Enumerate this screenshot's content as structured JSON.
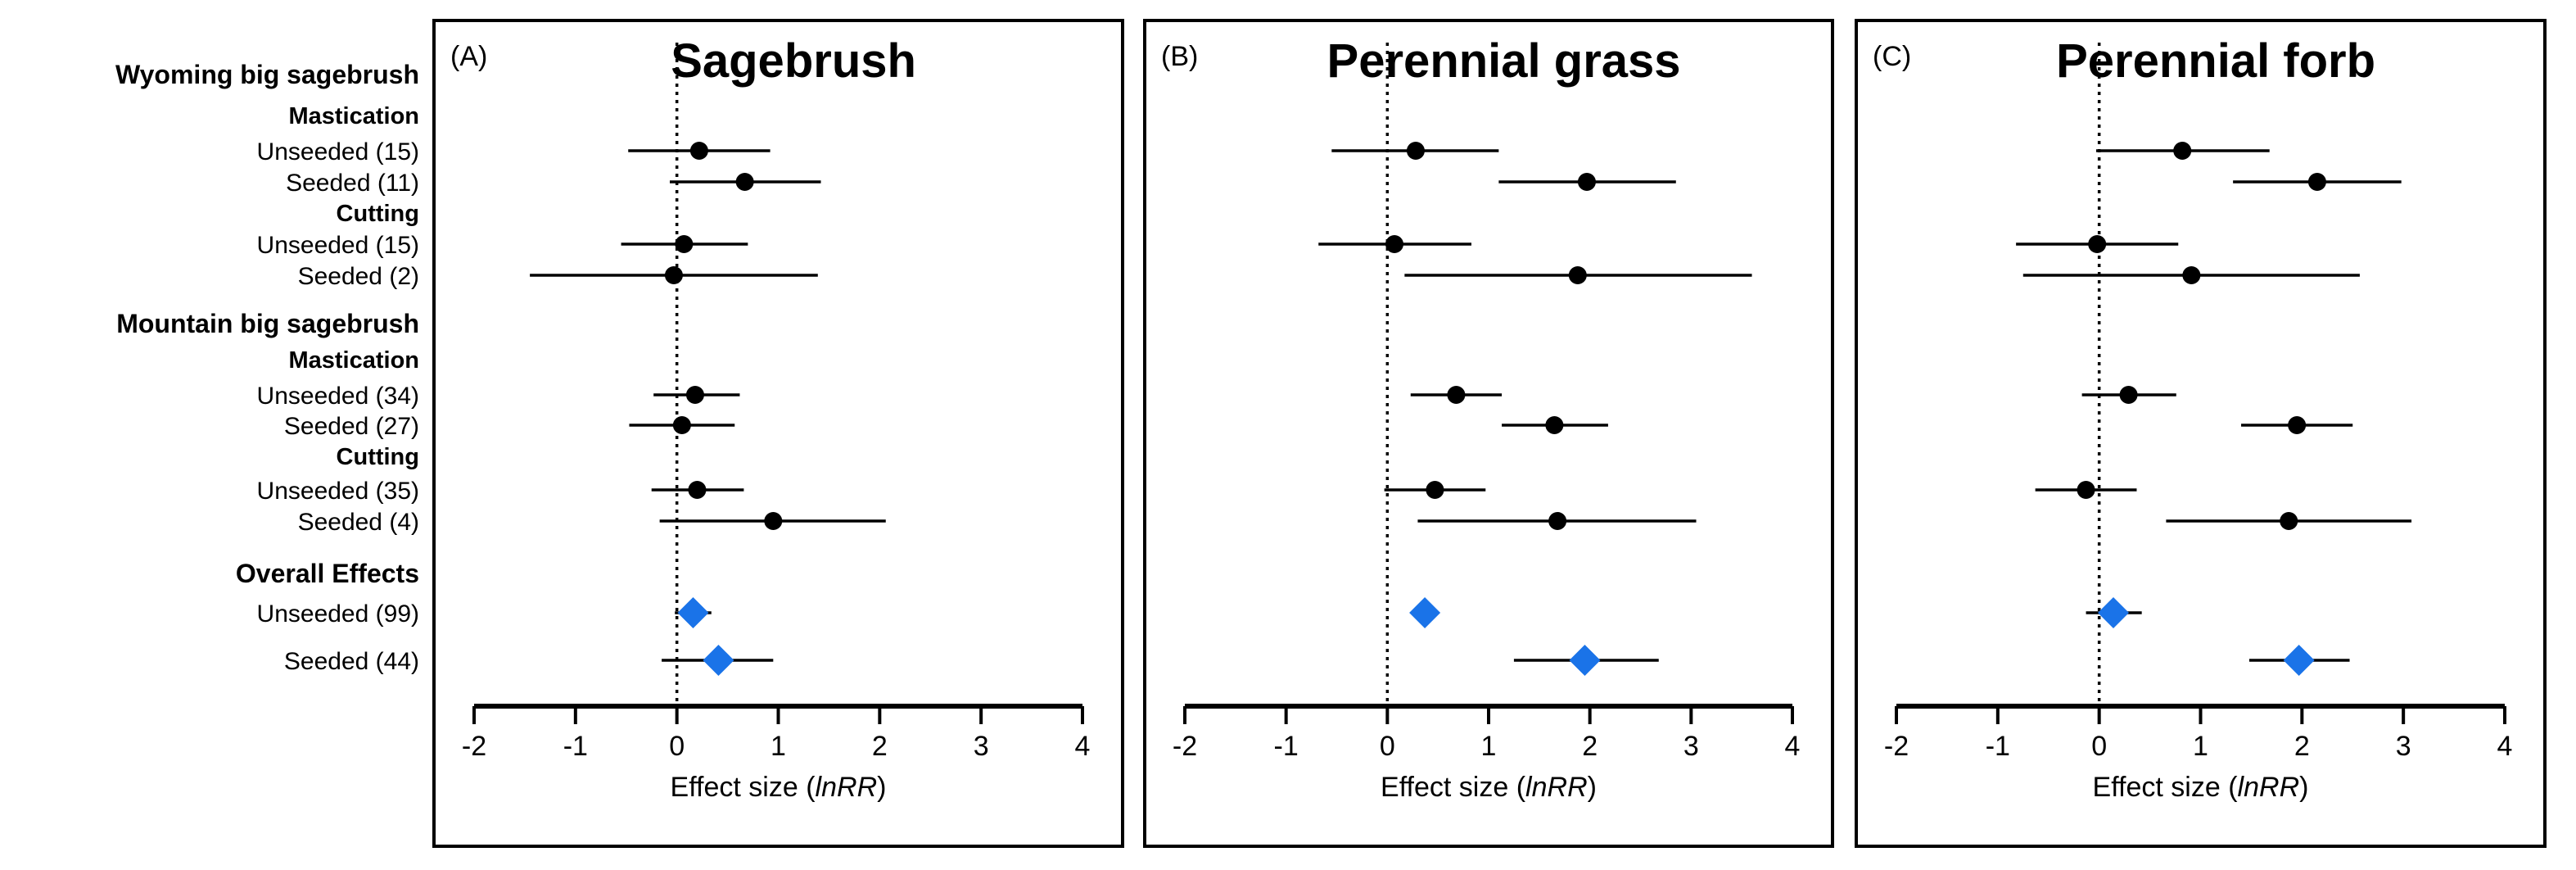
{
  "chart_data": {
    "type": "forest",
    "rows": [
      {
        "label": "Wyoming big sagebrush",
        "kind": "group"
      },
      {
        "label": "Mastication",
        "kind": "subgroup"
      },
      {
        "label": "Unseeded (15)",
        "kind": "point"
      },
      {
        "label": "Seeded (11)",
        "kind": "point"
      },
      {
        "label": "Cutting",
        "kind": "subgroup"
      },
      {
        "label": "Unseeded (15)",
        "kind": "point"
      },
      {
        "label": "Seeded (2)",
        "kind": "point"
      },
      {
        "label": "Mountain big sagebrush",
        "kind": "group"
      },
      {
        "label": "Mastication",
        "kind": "subgroup"
      },
      {
        "label": "Unseeded (34)",
        "kind": "point"
      },
      {
        "label": "Seeded (27)",
        "kind": "point"
      },
      {
        "label": "Cutting",
        "kind": "subgroup"
      },
      {
        "label": "Unseeded (35)",
        "kind": "point"
      },
      {
        "label": "Seeded (4)",
        "kind": "point"
      },
      {
        "label": "Overall Effects",
        "kind": "group"
      },
      {
        "label": "Unseeded (99)",
        "kind": "overall"
      },
      {
        "label": "Seeded (44)",
        "kind": "overall"
      }
    ],
    "xlim": [
      -2,
      4
    ],
    "xticks": [
      "-2",
      "-1",
      "0",
      "1",
      "2",
      "3",
      "4"
    ],
    "xlabel_prefix": "Effect size (",
    "xlabel_italic": "lnRR",
    "xlabel_suffix": ")",
    "reference_line": 0,
    "colors": {
      "point": "#000000",
      "overall": "#1a73e8"
    },
    "panels": [
      {
        "letter": "(A)",
        "title": "Sagebrush",
        "estimates": [
          {
            "mean": 0.22,
            "low": -0.48,
            "high": 0.92
          },
          {
            "mean": 0.67,
            "low": -0.07,
            "high": 1.42
          },
          {
            "mean": 0.07,
            "low": -0.55,
            "high": 0.7
          },
          {
            "mean": -0.03,
            "low": -1.45,
            "high": 1.39
          },
          {
            "mean": 0.18,
            "low": -0.23,
            "high": 0.62
          },
          {
            "mean": 0.05,
            "low": -0.47,
            "high": 0.57
          },
          {
            "mean": 0.2,
            "low": -0.25,
            "high": 0.66
          },
          {
            "mean": 0.95,
            "low": -0.17,
            "high": 2.06
          },
          {
            "mean": 0.16,
            "low": -0.02,
            "high": 0.34
          },
          {
            "mean": 0.41,
            "low": -0.15,
            "high": 0.95
          }
        ]
      },
      {
        "letter": "(B)",
        "title": "Perennial grass",
        "estimates": [
          {
            "mean": 0.28,
            "low": -0.55,
            "high": 1.1
          },
          {
            "mean": 1.97,
            "low": 1.1,
            "high": 2.85
          },
          {
            "mean": 0.07,
            "low": -0.68,
            "high": 0.83
          },
          {
            "mean": 1.88,
            "low": 0.17,
            "high": 3.6
          },
          {
            "mean": 0.68,
            "low": 0.23,
            "high": 1.13
          },
          {
            "mean": 1.65,
            "low": 1.13,
            "high": 2.18
          },
          {
            "mean": 0.47,
            "low": -0.03,
            "high": 0.97
          },
          {
            "mean": 1.68,
            "low": 0.3,
            "high": 3.05
          },
          {
            "mean": 0.37,
            "low": 0.37,
            "high": 0.37
          },
          {
            "mean": 1.95,
            "low": 1.25,
            "high": 2.68
          }
        ]
      },
      {
        "letter": "(C)",
        "title": "Perennial forb",
        "estimates": [
          {
            "mean": 0.82,
            "low": -0.03,
            "high": 1.68
          },
          {
            "mean": 2.15,
            "low": 1.32,
            "high": 2.98
          },
          {
            "mean": -0.02,
            "low": -0.82,
            "high": 0.78
          },
          {
            "mean": 0.91,
            "low": -0.75,
            "high": 2.57
          },
          {
            "mean": 0.29,
            "low": -0.17,
            "high": 0.76
          },
          {
            "mean": 1.95,
            "low": 1.4,
            "high": 2.5
          },
          {
            "mean": -0.13,
            "low": -0.63,
            "high": 0.37
          },
          {
            "mean": 1.87,
            "low": 0.66,
            "high": 3.08
          },
          {
            "mean": 0.14,
            "low": -0.13,
            "high": 0.42
          },
          {
            "mean": 1.97,
            "low": 1.48,
            "high": 2.47
          }
        ]
      }
    ]
  }
}
